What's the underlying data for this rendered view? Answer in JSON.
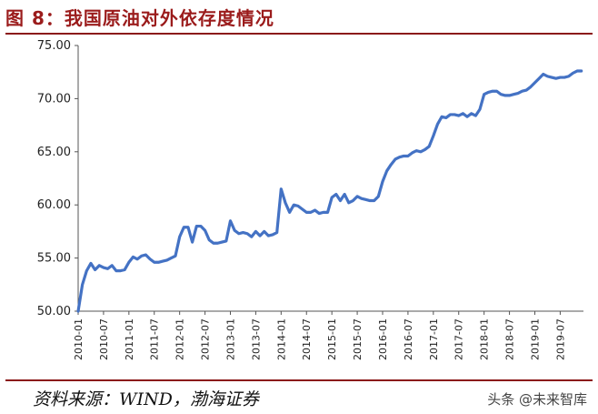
{
  "header": {
    "title": "图 8：我国原油对外依存度情况"
  },
  "footer": {
    "source": "资料来源：WIND，渤海证券",
    "watermark": "头条 @未来智库"
  },
  "chart_data": {
    "type": "line",
    "title": "",
    "xlabel": "",
    "ylabel": "",
    "ylim": [
      50,
      75
    ],
    "y_ticks": [
      "50.00",
      "55.00",
      "60.00",
      "65.00",
      "70.00",
      "75.00"
    ],
    "x_ticks": [
      "2010-01",
      "2010-07",
      "2011-01",
      "2011-07",
      "2012-01",
      "2012-07",
      "2013-01",
      "2013-07",
      "2014-01",
      "2014-07",
      "2015-01",
      "2015-07",
      "2016-01",
      "2016-07",
      "2017-01",
      "2017-07",
      "2018-01",
      "2018-07",
      "2019-01",
      "2019-07"
    ],
    "color": "#4472c4",
    "grid": false,
    "series": [
      {
        "values": [
          50.0,
          52.5,
          53.8,
          54.5,
          53.9,
          54.3,
          54.1,
          54.0,
          54.3,
          53.8,
          53.8,
          53.9,
          54.6,
          55.1,
          54.9,
          55.2,
          55.3,
          54.9,
          54.6,
          54.6,
          54.7,
          54.8,
          55.0,
          55.2,
          57.0,
          57.9,
          57.9,
          56.5,
          58.0,
          58.0,
          57.6,
          56.7,
          56.4,
          56.4,
          56.5,
          56.6,
          58.5,
          57.6,
          57.3,
          57.4,
          57.3,
          57.0,
          57.5,
          57.1,
          57.5,
          57.1,
          57.2,
          57.4,
          61.5,
          60.2,
          59.3,
          60.0,
          59.9,
          59.6,
          59.3,
          59.3,
          59.5,
          59.2,
          59.3,
          59.3,
          60.7,
          61.0,
          60.4,
          61.0,
          60.2,
          60.4,
          60.8,
          60.6,
          60.5,
          60.4,
          60.4,
          60.8,
          62.2,
          63.2,
          63.8,
          64.3,
          64.5,
          64.6,
          64.6,
          64.9,
          65.1,
          65.0,
          65.2,
          65.5,
          66.5,
          67.6,
          68.3,
          68.2,
          68.5,
          68.5,
          68.4,
          68.6,
          68.3,
          68.6,
          68.4,
          69.0,
          70.4,
          70.6,
          70.7,
          70.7,
          70.4,
          70.3,
          70.3,
          70.4,
          70.5,
          70.7,
          70.8,
          71.1,
          71.5,
          71.9,
          72.3,
          72.1,
          72.0,
          71.9,
          72.0,
          72.0,
          72.1,
          72.4,
          72.6,
          72.6
        ]
      }
    ]
  }
}
